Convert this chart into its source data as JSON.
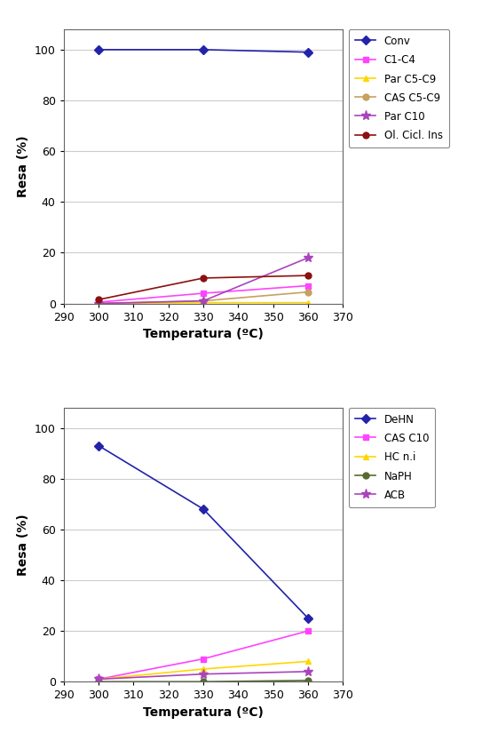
{
  "top_chart": {
    "x": [
      300,
      330,
      360
    ],
    "series": [
      {
        "label": "Conv",
        "color": "#2222AA",
        "marker": "D",
        "markersize": 5,
        "values": [
          100,
          100,
          99
        ]
      },
      {
        "label": "C1-C4",
        "color": "#FF44FF",
        "marker": "s",
        "markersize": 5,
        "values": [
          0.5,
          4,
          7
        ]
      },
      {
        "label": "Par C5-C9",
        "color": "#FFD700",
        "marker": "^",
        "markersize": 5,
        "values": [
          0,
          0.3,
          0.3
        ]
      },
      {
        "label": "CAS C5-C9",
        "color": "#C8A060",
        "marker": "o",
        "markersize": 5,
        "values": [
          0,
          1,
          4.5
        ]
      },
      {
        "label": "Par C10",
        "color": "#AA44BB",
        "marker": "*",
        "markersize": 8,
        "values": [
          0,
          1,
          18
        ]
      },
      {
        "label": "Ol. Cicl. Ins",
        "color": "#8B1010",
        "marker": "o",
        "markersize": 5,
        "values": [
          1.5,
          10,
          11
        ]
      }
    ],
    "ylabel": "Resa (%)",
    "xlabel": "Temperatura (ºC)",
    "xlim": [
      290,
      370
    ],
    "ylim": [
      0,
      108
    ],
    "yticks": [
      0,
      20,
      40,
      60,
      80,
      100
    ],
    "xticks": [
      290,
      300,
      310,
      320,
      330,
      340,
      350,
      360,
      370
    ]
  },
  "bottom_chart": {
    "x": [
      300,
      330,
      360
    ],
    "series": [
      {
        "label": "DeHN",
        "color": "#2222AA",
        "marker": "D",
        "markersize": 5,
        "values": [
          93,
          68,
          25
        ]
      },
      {
        "label": "CAS C10",
        "color": "#FF44FF",
        "marker": "s",
        "markersize": 5,
        "values": [
          1,
          9,
          20
        ]
      },
      {
        "label": "HC n.i",
        "color": "#FFD700",
        "marker": "^",
        "markersize": 5,
        "values": [
          1,
          5,
          8
        ]
      },
      {
        "label": "NaPH",
        "color": "#556B2F",
        "marker": "o",
        "markersize": 5,
        "values": [
          0,
          0,
          0.5
        ]
      },
      {
        "label": "ACB",
        "color": "#AA44BB",
        "marker": "*",
        "markersize": 8,
        "values": [
          1,
          3,
          4
        ]
      }
    ],
    "ylabel": "Resa (%)",
    "xlabel": "Temperatura (ºC)",
    "xlim": [
      290,
      370
    ],
    "ylim": [
      0,
      108
    ],
    "yticks": [
      0,
      20,
      40,
      60,
      80,
      100
    ],
    "xticks": [
      290,
      300,
      310,
      320,
      330,
      340,
      350,
      360,
      370
    ]
  },
  "fig_width": 5.52,
  "fig_height": 8.25,
  "dpi": 100
}
